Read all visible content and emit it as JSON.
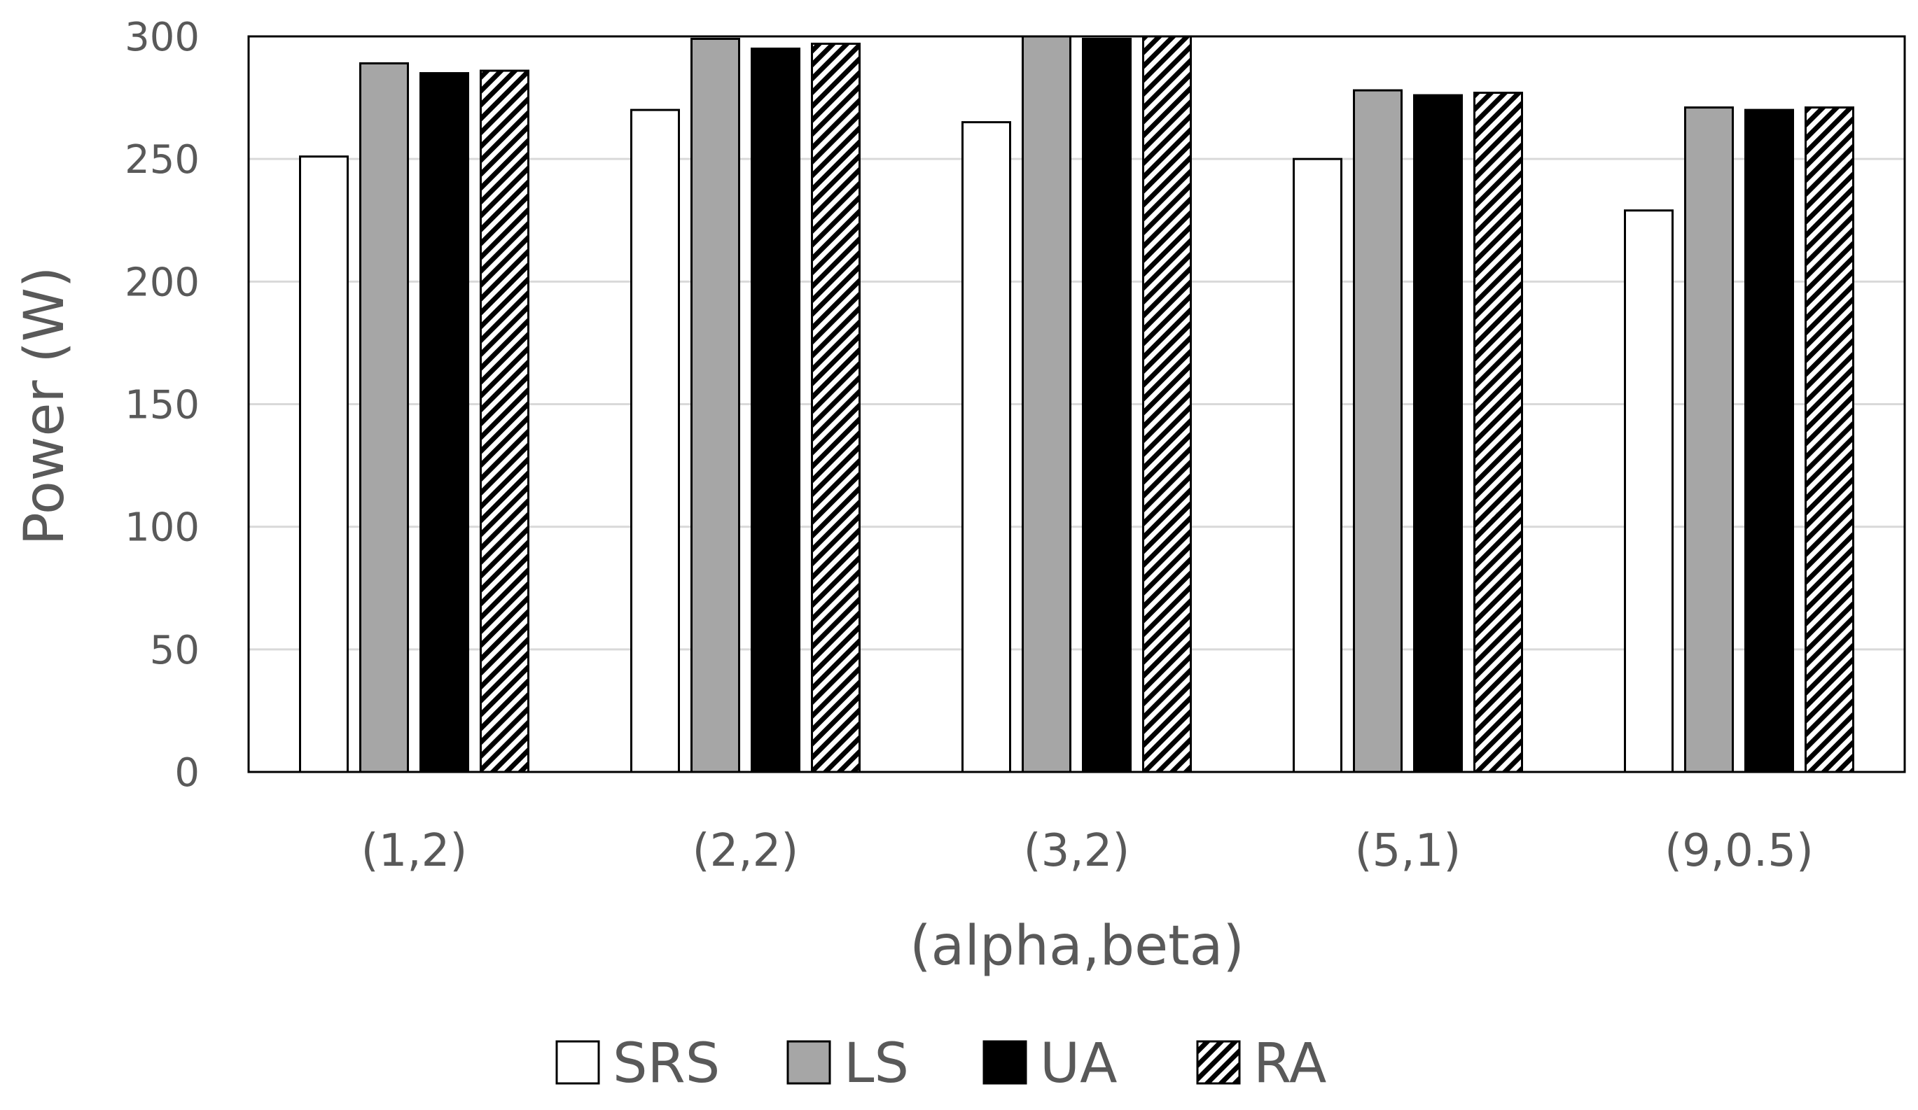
{
  "chart_data": {
    "type": "bar",
    "title": "",
    "xlabel": "(alpha,beta)",
    "ylabel": "Power (W)",
    "ylim": [
      0,
      300
    ],
    "yticks": [
      0,
      50,
      100,
      150,
      200,
      250,
      300
    ],
    "categories": [
      "(1,2)",
      "(2,2)",
      "(3,2)",
      "(5,1)",
      "(9,0.5)"
    ],
    "series": [
      {
        "name": "SRS",
        "style": "white",
        "values": [
          251,
          270,
          265,
          250,
          229
        ]
      },
      {
        "name": "LS",
        "style": "gray",
        "values": [
          289,
          299,
          301,
          278,
          271
        ]
      },
      {
        "name": "UA",
        "style": "black",
        "values": [
          285,
          295,
          299,
          276,
          270
        ]
      },
      {
        "name": "RA",
        "style": "hatch",
        "values": [
          286,
          297,
          300,
          277,
          271
        ]
      }
    ],
    "legend_position": "bottom",
    "grid": true
  },
  "colors": {
    "srs_fill": "#ffffff",
    "ls_fill": "#a6a6a6",
    "ua_fill": "#000000",
    "bar_stroke": "#000000",
    "gridline": "#d9d9d9",
    "text": "#595959"
  }
}
